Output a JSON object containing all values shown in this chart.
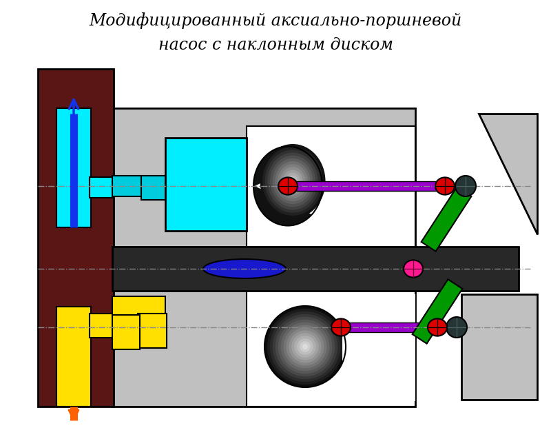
{
  "title_line1": "Модифицированный аксиально-поршневой",
  "title_line2": "насос с наклонным диском",
  "title_fontsize": 17,
  "bg_color": "#ffffff",
  "colors": {
    "dark_red": "#5A1515",
    "light_gray": "#C0C0C0",
    "dark_gray": "#282828",
    "cyan": "#00EEFF",
    "cyan2": "#00CCDD",
    "yellow": "#FFE000",
    "purple": "#9900CC",
    "green": "#009900",
    "red": "#DD0000",
    "dark_teal": "#253535",
    "blue": "#1818CC",
    "magenta": "#FF1890",
    "orange": "#FF6000",
    "blue_arr": "#1133EE",
    "black": "#000000",
    "white": "#FFFFFF"
  }
}
